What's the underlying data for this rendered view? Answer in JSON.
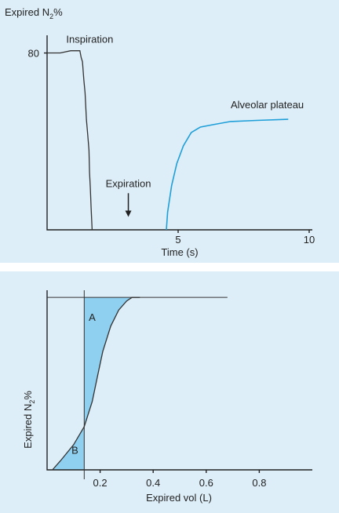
{
  "chart_data": [
    {
      "type": "line",
      "ylabel_prefix": "Expired N",
      "ylabel_sub": "2",
      "ylabel_suffix": "%",
      "xlabel": "Time (s)",
      "xlim": [
        0,
        10
      ],
      "ylim": [
        0,
        88
      ],
      "x_ticks": [
        {
          "value": 5,
          "label": "5"
        },
        {
          "value": 10,
          "label": "10"
        }
      ],
      "y_ticks": [
        {
          "value": 80,
          "label": "80"
        }
      ],
      "series": [
        {
          "color": "#333333",
          "points": [
            [
              0,
              80
            ],
            [
              0.5,
              80
            ],
            [
              0.9,
              81
            ],
            [
              1.25,
              81
            ],
            [
              1.3,
              78
            ],
            [
              1.35,
              76
            ],
            [
              1.4,
              68
            ],
            [
              1.45,
              62
            ],
            [
              1.5,
              50
            ],
            [
              1.55,
              43
            ],
            [
              1.6,
              36
            ],
            [
              1.62,
              26
            ],
            [
              1.65,
              19
            ],
            [
              1.68,
              10
            ],
            [
              1.72,
              0
            ]
          ]
        },
        {
          "color": "#1f9fd8",
          "points": [
            [
              4.55,
              0
            ],
            [
              4.6,
              8
            ],
            [
              4.75,
              20
            ],
            [
              4.95,
              30
            ],
            [
              5.2,
              38
            ],
            [
              5.5,
              44
            ],
            [
              5.85,
              46.5
            ],
            [
              6.3,
              47.5
            ],
            [
              7.0,
              49
            ],
            [
              8.0,
              49.5
            ],
            [
              9.2,
              50
            ]
          ]
        }
      ],
      "annotations": {
        "inspiration": {
          "text": "Inspiration",
          "x": 0.7,
          "y": 84
        },
        "expiration": {
          "text": "Expiration",
          "x": 3.1,
          "y": 18,
          "arrow_to": [
            3.1,
            3
          ]
        },
        "plateau": {
          "text": "Alveolar plateau",
          "x": 8.4,
          "y": 55
        }
      }
    },
    {
      "type": "area",
      "ylabel_prefix": "Expired N",
      "ylabel_sub": "2",
      "ylabel_suffix": "%",
      "xlabel": "Expired vol  (L)",
      "xlim": [
        0,
        1.0
      ],
      "ylim": [
        0,
        100
      ],
      "x_ticks": [
        {
          "value": 0.2,
          "label": "0.2"
        },
        {
          "value": 0.4,
          "label": "0.4"
        },
        {
          "value": 0.6,
          "label": "0.6"
        },
        {
          "value": 0.8,
          "label": "0.8"
        }
      ],
      "curve": [
        [
          0.02,
          0
        ],
        [
          0.05,
          5
        ],
        [
          0.1,
          14
        ],
        [
          0.14,
          24
        ],
        [
          0.17,
          38
        ],
        [
          0.19,
          52
        ],
        [
          0.21,
          66
        ],
        [
          0.24,
          80
        ],
        [
          0.27,
          89
        ],
        [
          0.3,
          94
        ],
        [
          0.32,
          96
        ],
        [
          0.35,
          96
        ]
      ],
      "plateau_level": 96,
      "plateau_x_end": 0.68,
      "divider_x": 0.14,
      "divider_top": 100,
      "fill_color": "#8fcfef",
      "curve_color": "#333333",
      "regions": {
        "a": {
          "text": "A",
          "x": 0.17,
          "y": 83
        },
        "b": {
          "text": "B",
          "x": 0.105,
          "y": 9
        }
      }
    }
  ]
}
